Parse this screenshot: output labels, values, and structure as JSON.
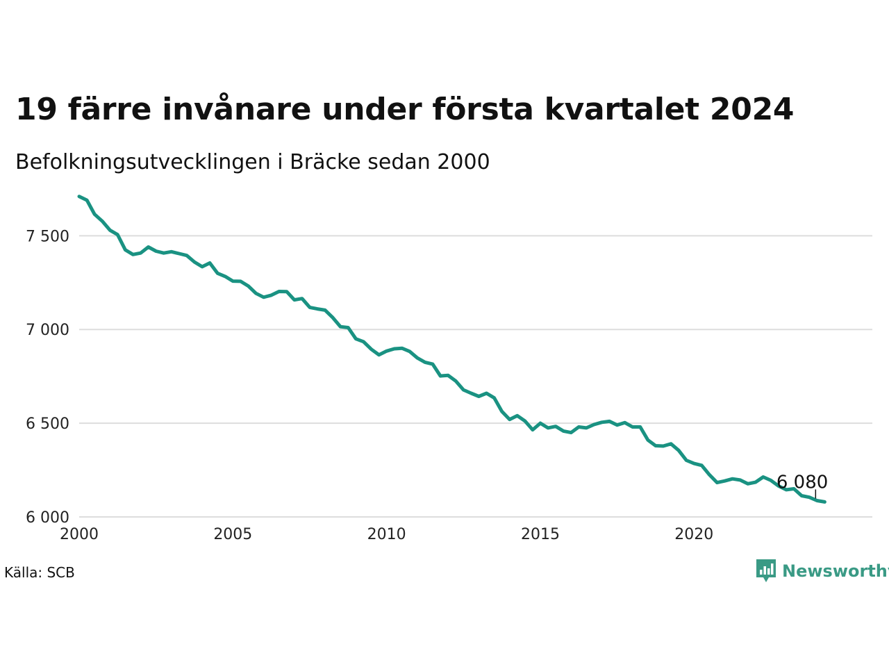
{
  "header": {
    "title": "19 färre invånare under första kvartalet 2024",
    "subtitle": "Befolkningsutvecklingen i Bräcke sedan 2000"
  },
  "footer": {
    "source": "Källa: SCB",
    "brand": "Newsworthy",
    "brand_icon": "bar-chart-speech-bubble-icon"
  },
  "colors": {
    "line": "#1a9282",
    "grid": "#dddddd",
    "brand": "#3a9a85"
  },
  "chart_data": {
    "type": "line",
    "x_start": 2000.0,
    "x_step": 0.25,
    "xlim": [
      2000,
      2025.8
    ],
    "ylim": [
      6000,
      7720
    ],
    "x_ticks": [
      2000,
      2005,
      2010,
      2015,
      2020
    ],
    "x_tick_labels": [
      "2000",
      "2005",
      "2010",
      "2015",
      "2020"
    ],
    "y_ticks": [
      6000,
      6500,
      7000,
      7500
    ],
    "y_tick_labels": [
      "6 000",
      "6 500",
      "7 000",
      "7 500"
    ],
    "grid": "horizontal",
    "series": [
      {
        "values": [
          7710,
          7690,
          7615,
          7578,
          7530,
          7506,
          7425,
          7400,
          7408,
          7440,
          7418,
          7408,
          7415,
          7405,
          7395,
          7360,
          7335,
          7355,
          7300,
          7283,
          7258,
          7257,
          7232,
          7193,
          7172,
          7183,
          7203,
          7202,
          7158,
          7165,
          7118,
          7110,
          7103,
          7063,
          7015,
          7010,
          6950,
          6935,
          6895,
          6865,
          6885,
          6897,
          6900,
          6883,
          6848,
          6825,
          6815,
          6752,
          6755,
          6725,
          6678,
          6660,
          6643,
          6660,
          6635,
          6563,
          6520,
          6540,
          6512,
          6465,
          6500,
          6475,
          6483,
          6458,
          6450,
          6480,
          6475,
          6493,
          6505,
          6510,
          6490,
          6503,
          6480,
          6480,
          6410,
          6380,
          6378,
          6390,
          6355,
          6302,
          6285,
          6275,
          6225,
          6183,
          6192,
          6203,
          6197,
          6177,
          6185,
          6213,
          6195,
          6165,
          6145,
          6150,
          6113,
          6105,
          6087,
          6080
        ]
      }
    ],
    "annotation": {
      "label": "6 080",
      "x": 2024.0,
      "y": 6080
    }
  }
}
